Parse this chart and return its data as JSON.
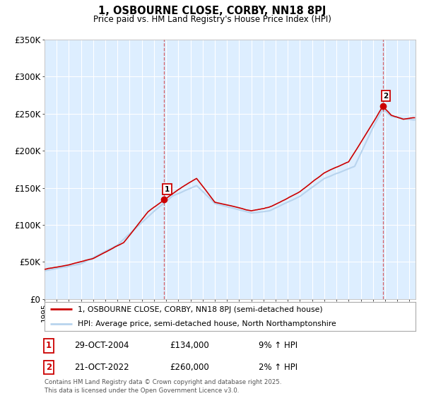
{
  "title": "1, OSBOURNE CLOSE, CORBY, NN18 8PJ",
  "subtitle": "Price paid vs. HM Land Registry's House Price Index (HPI)",
  "legend_line1": "1, OSBOURNE CLOSE, CORBY, NN18 8PJ (semi-detached house)",
  "legend_line2": "HPI: Average price, semi-detached house, North Northamptonshire",
  "sale1_date": "29-OCT-2004",
  "sale1_price": "£134,000",
  "sale1_hpi": "9% ↑ HPI",
  "sale1_year": 2004.83,
  "sale1_value": 134000,
  "sale2_date": "21-OCT-2022",
  "sale2_price": "£260,000",
  "sale2_hpi": "2% ↑ HPI",
  "sale2_year": 2022.8,
  "sale2_value": 260000,
  "footer": "Contains HM Land Registry data © Crown copyright and database right 2025.\nThis data is licensed under the Open Government Licence v3.0.",
  "ylim": [
    0,
    350000
  ],
  "yticks": [
    0,
    50000,
    100000,
    150000,
    200000,
    250000,
    300000,
    350000
  ],
  "ytick_labels": [
    "£0",
    "£50K",
    "£100K",
    "£150K",
    "£200K",
    "£250K",
    "£300K",
    "£350K"
  ],
  "red_color": "#cc0000",
  "blue_color": "#b8d4ee",
  "plot_bg": "#ddeeff",
  "grid_color": "#ffffff",
  "xlim_start": 1995.0,
  "xlim_end": 2025.5
}
